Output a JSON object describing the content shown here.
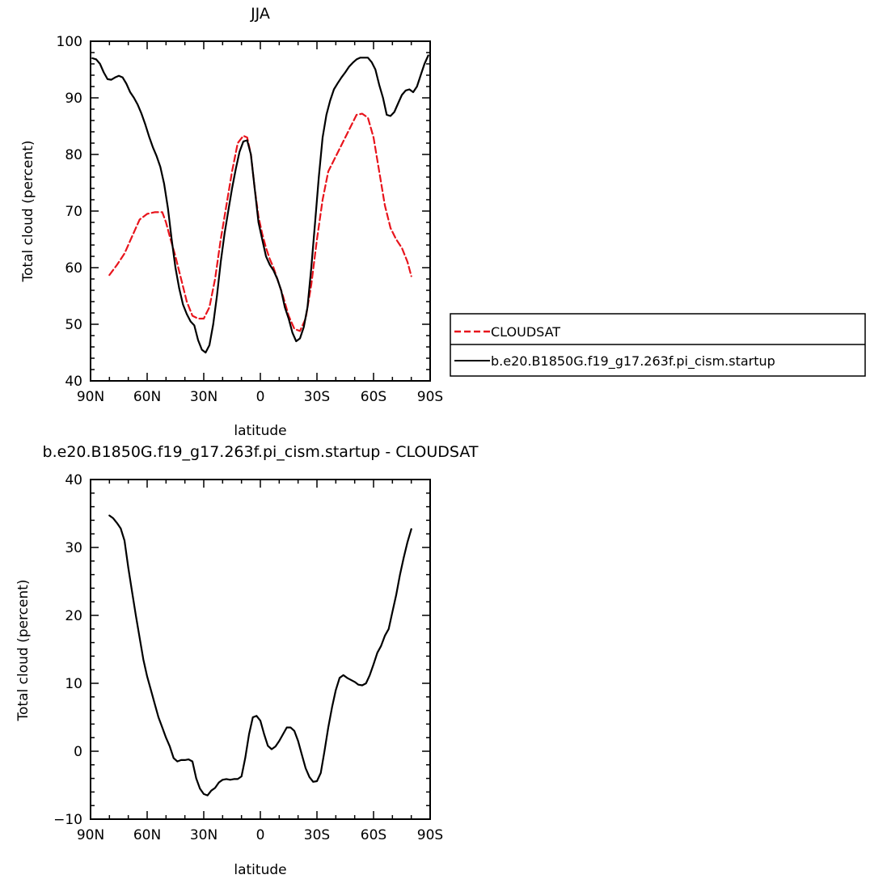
{
  "chart_data": [
    {
      "type": "line",
      "title": "JJA",
      "xlabel": "latitude",
      "ylabel": "Total cloud (percent)",
      "xlim": [
        -90,
        90
      ],
      "ylim": [
        40,
        100
      ],
      "x_ticks": [
        {
          "value": -90,
          "label": "90N"
        },
        {
          "value": -60,
          "label": "60N"
        },
        {
          "value": -30,
          "label": "30N"
        },
        {
          "value": 0,
          "label": "0"
        },
        {
          "value": 30,
          "label": "30S"
        },
        {
          "value": 60,
          "label": "60S"
        },
        {
          "value": 90,
          "label": "90S"
        }
      ],
      "y_ticks": [
        40,
        50,
        60,
        70,
        80,
        90,
        100
      ],
      "legend": {
        "placement": "right"
      },
      "series": [
        {
          "name": "CLOUDSAT",
          "color": "#e8141c",
          "dash": true,
          "x": [
            -80,
            -76,
            -72,
            -68,
            -64,
            -60,
            -56,
            -52,
            -50,
            -48,
            -45,
            -42,
            -39,
            -36,
            -33,
            -30,
            -27,
            -24,
            -21,
            -18,
            -15,
            -12,
            -9,
            -7,
            -5,
            -3,
            -1,
            1,
            3,
            5,
            7,
            9,
            12,
            15,
            18,
            21,
            24,
            27,
            30,
            33,
            36,
            39,
            42,
            45,
            48,
            51,
            54,
            57,
            60,
            63,
            66,
            69,
            72,
            75,
            78,
            80
          ],
          "values": [
            58.7,
            60.5,
            62.5,
            65.5,
            68.5,
            69.5,
            69.8,
            69.8,
            68,
            65.5,
            62,
            58,
            54,
            51.5,
            51,
            51,
            53,
            58,
            65,
            71,
            77,
            82,
            83.3,
            83,
            80,
            74,
            69,
            66,
            63.5,
            61.5,
            60,
            58,
            55,
            51.5,
            49.2,
            48.8,
            51,
            57,
            65,
            72,
            77,
            79,
            81,
            83,
            85,
            87,
            87.2,
            86.5,
            83,
            77,
            71,
            67,
            65,
            63.5,
            61,
            58.5
          ]
        },
        {
          "name": "b.e20.B1850G.f19_g17.263f.pi_cism.startup",
          "color": "#000000",
          "dash": false,
          "x": [
            -89,
            -87,
            -85,
            -83,
            -81,
            -79,
            -77,
            -75,
            -73,
            -71,
            -69,
            -67,
            -65,
            -63,
            -61,
            -59,
            -57,
            -55,
            -53,
            -51,
            -49,
            -47,
            -45,
            -43,
            -41,
            -39,
            -37,
            -35,
            -33,
            -31,
            -29,
            -27,
            -25,
            -23,
            -21,
            -19,
            -17,
            -15,
            -13,
            -11,
            -9,
            -7,
            -5,
            -3,
            -1,
            1,
            3,
            5,
            7,
            9,
            11,
            13,
            15,
            17,
            19,
            21,
            23,
            25,
            27,
            29,
            31,
            33,
            35,
            37,
            39,
            41,
            43,
            45,
            47,
            49,
            51,
            53,
            55,
            57,
            59,
            61,
            63,
            65,
            67,
            69,
            71,
            73,
            75,
            77,
            79,
            81,
            83,
            85,
            87,
            89
          ],
          "values": [
            97,
            96.8,
            96,
            94.5,
            93.3,
            93.2,
            93.6,
            93.9,
            93.6,
            92.5,
            91,
            90,
            88.8,
            87.2,
            85.3,
            83.2,
            81.3,
            79.7,
            77.8,
            74.8,
            70.5,
            65,
            60,
            56.3,
            53.5,
            51.8,
            50.5,
            49.8,
            47.2,
            45.5,
            45,
            46.3,
            50,
            55,
            61,
            66,
            70,
            74,
            77.5,
            80.5,
            82.3,
            82.5,
            80,
            74,
            68,
            65,
            62,
            60.5,
            59.5,
            58,
            56,
            53,
            51,
            48.5,
            47,
            47.5,
            49.5,
            53,
            60,
            68,
            76,
            83,
            87,
            89.5,
            91.5,
            92.6,
            93.6,
            94.5,
            95.5,
            96.2,
            96.8,
            97.1,
            97.1,
            97.1,
            96.3,
            95,
            92.3,
            90,
            87,
            86.8,
            87.5,
            89,
            90.5,
            91.3,
            91.5,
            91,
            92,
            94,
            96,
            97.5
          ]
        }
      ]
    },
    {
      "type": "line",
      "title": "b.e20.B1850G.f19_g17.263f.pi_cism.startup - CLOUDSAT",
      "xlabel": "latitude",
      "ylabel": "Total cloud (percent)",
      "xlim": [
        -90,
        90
      ],
      "ylim": [
        -10,
        40
      ],
      "x_ticks": [
        {
          "value": -90,
          "label": "90N"
        },
        {
          "value": -60,
          "label": "60N"
        },
        {
          "value": -30,
          "label": "30N"
        },
        {
          "value": 0,
          "label": "0"
        },
        {
          "value": 30,
          "label": "30S"
        },
        {
          "value": 60,
          "label": "60S"
        },
        {
          "value": 90,
          "label": "90S"
        }
      ],
      "y_ticks": [
        -10,
        0,
        10,
        20,
        30,
        40
      ],
      "series": [
        {
          "color": "#000000",
          "dash": false,
          "x": [
            -80,
            -78,
            -76,
            -74,
            -72,
            -70,
            -68,
            -66,
            -64,
            -62,
            -60,
            -58,
            -56,
            -54,
            -52,
            -50,
            -48,
            -46,
            -44,
            -42,
            -40,
            -38,
            -36,
            -34,
            -32,
            -30,
            -28,
            -26,
            -24,
            -22,
            -20,
            -18,
            -16,
            -14,
            -12,
            -10,
            -8,
            -6,
            -4,
            -2,
            0,
            2,
            4,
            6,
            8,
            10,
            12,
            14,
            16,
            18,
            20,
            22,
            24,
            26,
            28,
            30,
            32,
            34,
            36,
            38,
            40,
            42,
            44,
            46,
            48,
            50,
            52,
            54,
            56,
            58,
            60,
            62,
            64,
            66,
            68,
            70,
            72,
            74,
            76,
            78,
            80
          ],
          "values": [
            34.7,
            34.3,
            33.6,
            32.8,
            31,
            27,
            23.5,
            20,
            16.7,
            13.5,
            11,
            9,
            7,
            5,
            3.5,
            2,
            0.7,
            -1,
            -1.5,
            -1.3,
            -1.3,
            -1.2,
            -1.5,
            -4,
            -5.5,
            -6.3,
            -6.5,
            -5.8,
            -5.4,
            -4.6,
            -4.2,
            -4.1,
            -4.2,
            -4.1,
            -4.1,
            -3.7,
            -1,
            2.5,
            5,
            5.2,
            4.5,
            2.5,
            0.8,
            0.3,
            0.7,
            1.5,
            2.5,
            3.5,
            3.5,
            3,
            1.5,
            -0.5,
            -2.5,
            -3.8,
            -4.5,
            -4.4,
            -3.2,
            0,
            3.5,
            6.5,
            9,
            10.8,
            11.2,
            10.8,
            10.5,
            10.2,
            9.8,
            9.7,
            10,
            11.2,
            12.8,
            14.5,
            15.5,
            17,
            18,
            20.5,
            23,
            26,
            28.5,
            30.8,
            32.7
          ]
        }
      ]
    }
  ]
}
